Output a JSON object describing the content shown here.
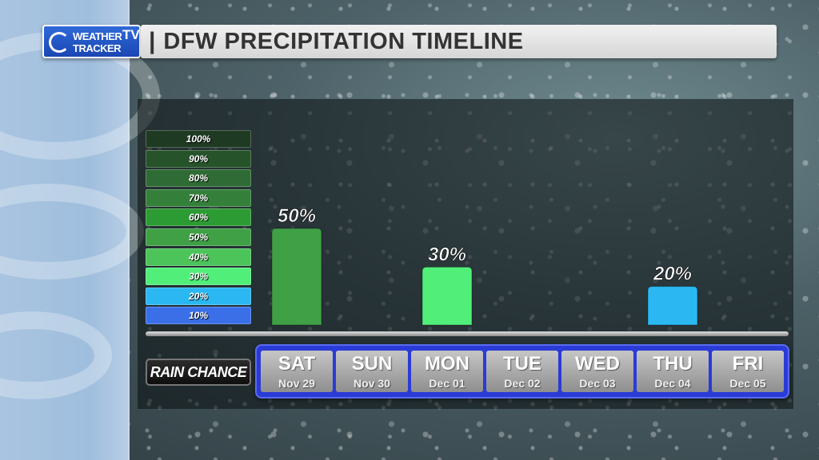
{
  "header": {
    "title": "DFW PRECIPITATION TIMELINE",
    "separator": "|"
  },
  "logo": {
    "line1": "WEATHER",
    "line2": "TRACKER",
    "tv": "TV"
  },
  "scale": [
    {
      "label": "100%",
      "color": "#1f3a22"
    },
    {
      "label": "90%",
      "color": "#27532b"
    },
    {
      "label": "80%",
      "color": "#2f6b34"
    },
    {
      "label": "70%",
      "color": "#34803a"
    },
    {
      "label": "60%",
      "color": "#2d9b33"
    },
    {
      "label": "50%",
      "color": "#3fa046"
    },
    {
      "label": "40%",
      "color": "#4cc45a"
    },
    {
      "label": "30%",
      "color": "#52ee7a"
    },
    {
      "label": "20%",
      "color": "#2bb8f2"
    },
    {
      "label": "10%",
      "color": "#3a6fe8"
    }
  ],
  "rain_label": "RAIN CHANCE",
  "chart_data": {
    "type": "bar",
    "categories": [
      "SAT",
      "SUN",
      "MON",
      "TUE",
      "WED",
      "THU",
      "FRI"
    ],
    "dates": [
      "Nov 29",
      "Nov 30",
      "Dec 01",
      "Dec 02",
      "Dec 03",
      "Dec 04",
      "Dec 05"
    ],
    "values": [
      50,
      null,
      30,
      null,
      null,
      20,
      null
    ],
    "labels": [
      "50%",
      "",
      "30%",
      "",
      "",
      "20%",
      ""
    ],
    "colors": [
      "#3fa046",
      "",
      "#52ee7a",
      "",
      "",
      "#2bb8f2",
      ""
    ],
    "title": "DFW PRECIPITATION TIMELINE",
    "ylim": [
      0,
      100
    ],
    "ylabel": "",
    "xlabel": ""
  }
}
